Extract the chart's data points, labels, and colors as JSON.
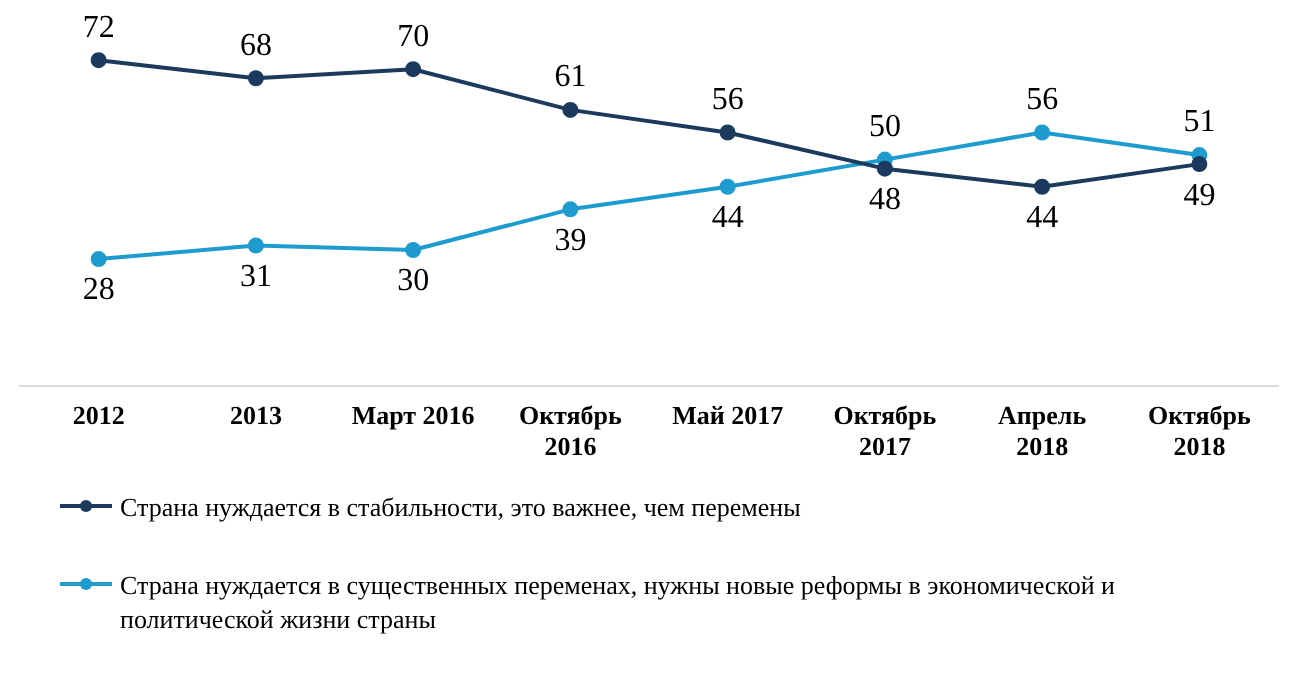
{
  "chart_data": {
    "type": "line",
    "categories": [
      "2012",
      "2013",
      "Март 2016",
      "Октябрь 2016",
      "Май 2017",
      "Октябрь 2017",
      "Апрель 2018",
      "Октябрь 2018"
    ],
    "series": [
      {
        "name": "Страна нуждается в стабильности, это важнее, чем перемены",
        "color": "#1b3a5e",
        "values": [
          72,
          68,
          70,
          61,
          56,
          48,
          44,
          49
        ]
      },
      {
        "name": "Страна нуждается в существенных переменах, нужны новые реформы в экономической и политической жизни страны",
        "color": "#1e9bcf",
        "values": [
          28,
          31,
          30,
          39,
          44,
          50,
          56,
          51
        ]
      }
    ],
    "tick_labels": "x",
    "grid": false,
    "legend": "bottom",
    "marker": "circle",
    "line_style": "solid",
    "data_labels": true
  }
}
